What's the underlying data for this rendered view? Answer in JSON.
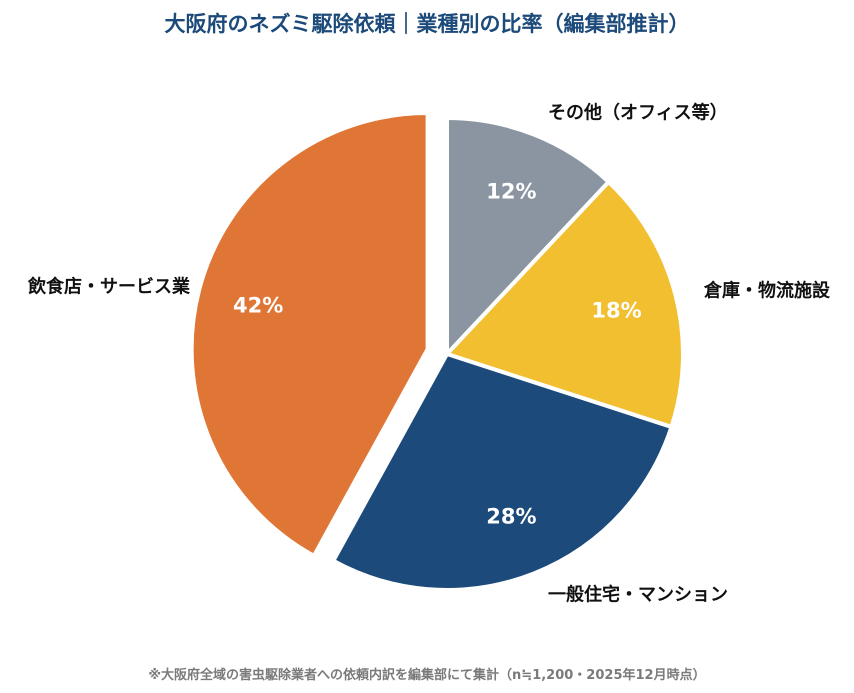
{
  "chart_data": {
    "type": "pie",
    "title": "大阪府のネズミ駆除依頼｜業種別の比率（編集部推計）",
    "footnote": "※大阪府全域の害虫駆除業者への依頼内訳を編集部にて集計（n≒1,200・2025年12月時点）",
    "slices": [
      {
        "label": "その他（オフィス等）",
        "value": 12,
        "pct_label": "12%",
        "color": "#8a95a1"
      },
      {
        "label": "倉庫・物流施設",
        "value": 18,
        "pct_label": "18%",
        "color": "#f2bf31"
      },
      {
        "label": "一般住宅・マンション",
        "value": 28,
        "pct_label": "28%",
        "color": "#1c4a7a"
      },
      {
        "label": "飲食店・サービス業",
        "value": 42,
        "pct_label": "42%",
        "color": "#e07636",
        "exploded": true
      }
    ],
    "start": "12 o'clock",
    "direction": "clockwise"
  }
}
